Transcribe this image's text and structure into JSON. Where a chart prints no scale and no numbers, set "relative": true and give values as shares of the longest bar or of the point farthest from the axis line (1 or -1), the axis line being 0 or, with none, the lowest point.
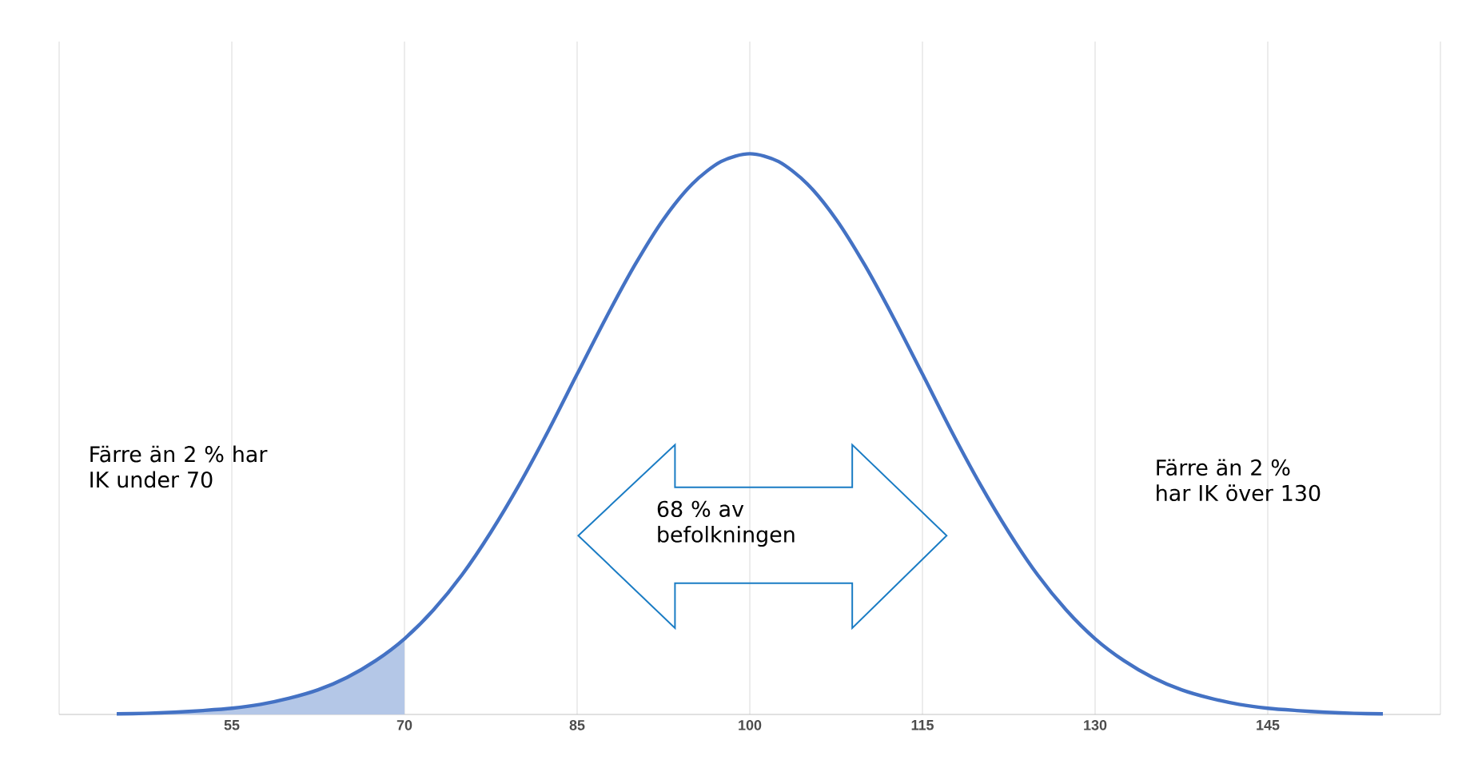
{
  "chart_data": {
    "type": "line",
    "relative": true,
    "xlim": [
      40,
      160
    ],
    "xticks": [
      {
        "value": 40,
        "label": null
      },
      55,
      70,
      85,
      100,
      115,
      130,
      145,
      {
        "value": 160,
        "label": null
      }
    ],
    "grid": "x",
    "series": [
      {
        "type": "area",
        "color": "#b4c7e7",
        "x": [
          45,
          47.5,
          50,
          52.5,
          55,
          57.5,
          60,
          62.5,
          65,
          67.5,
          70
        ],
        "values": [
          0.001,
          0.002,
          0.004,
          0.007,
          0.011,
          0.018,
          0.029,
          0.044,
          0.066,
          0.096,
          0.135
        ]
      },
      {
        "type": "line",
        "color": "#4472c4",
        "x": [
          45,
          47.5,
          50,
          52.5,
          55,
          57.5,
          60,
          62.5,
          65,
          67.5,
          70,
          72.5,
          75,
          77.5,
          80,
          82.5,
          85,
          87.5,
          90,
          92.5,
          95,
          97.5,
          100,
          102.5,
          105,
          107.5,
          110,
          112.5,
          115,
          117.5,
          120,
          122.5,
          125,
          127.5,
          130,
          132.5,
          135,
          137.5,
          140,
          142.5,
          145,
          147.5,
          150,
          152.5,
          155
        ],
        "values": [
          0.001,
          0.002,
          0.004,
          0.007,
          0.011,
          0.018,
          0.029,
          0.044,
          0.066,
          0.096,
          0.135,
          0.186,
          0.249,
          0.325,
          0.411,
          0.506,
          0.607,
          0.707,
          0.801,
          0.883,
          0.946,
          0.986,
          1,
          0.986,
          0.946,
          0.883,
          0.801,
          0.707,
          0.607,
          0.506,
          0.411,
          0.325,
          0.249,
          0.186,
          0.135,
          0.096,
          0.066,
          0.044,
          0.029,
          0.018,
          0.011,
          0.007,
          0.004,
          0.002,
          0.001
        ]
      }
    ],
    "annotations": [
      "Färre än 2 % har IK under 70",
      "68 % av befolkningen",
      "Färre än 2 % har IK över 130"
    ]
  }
}
